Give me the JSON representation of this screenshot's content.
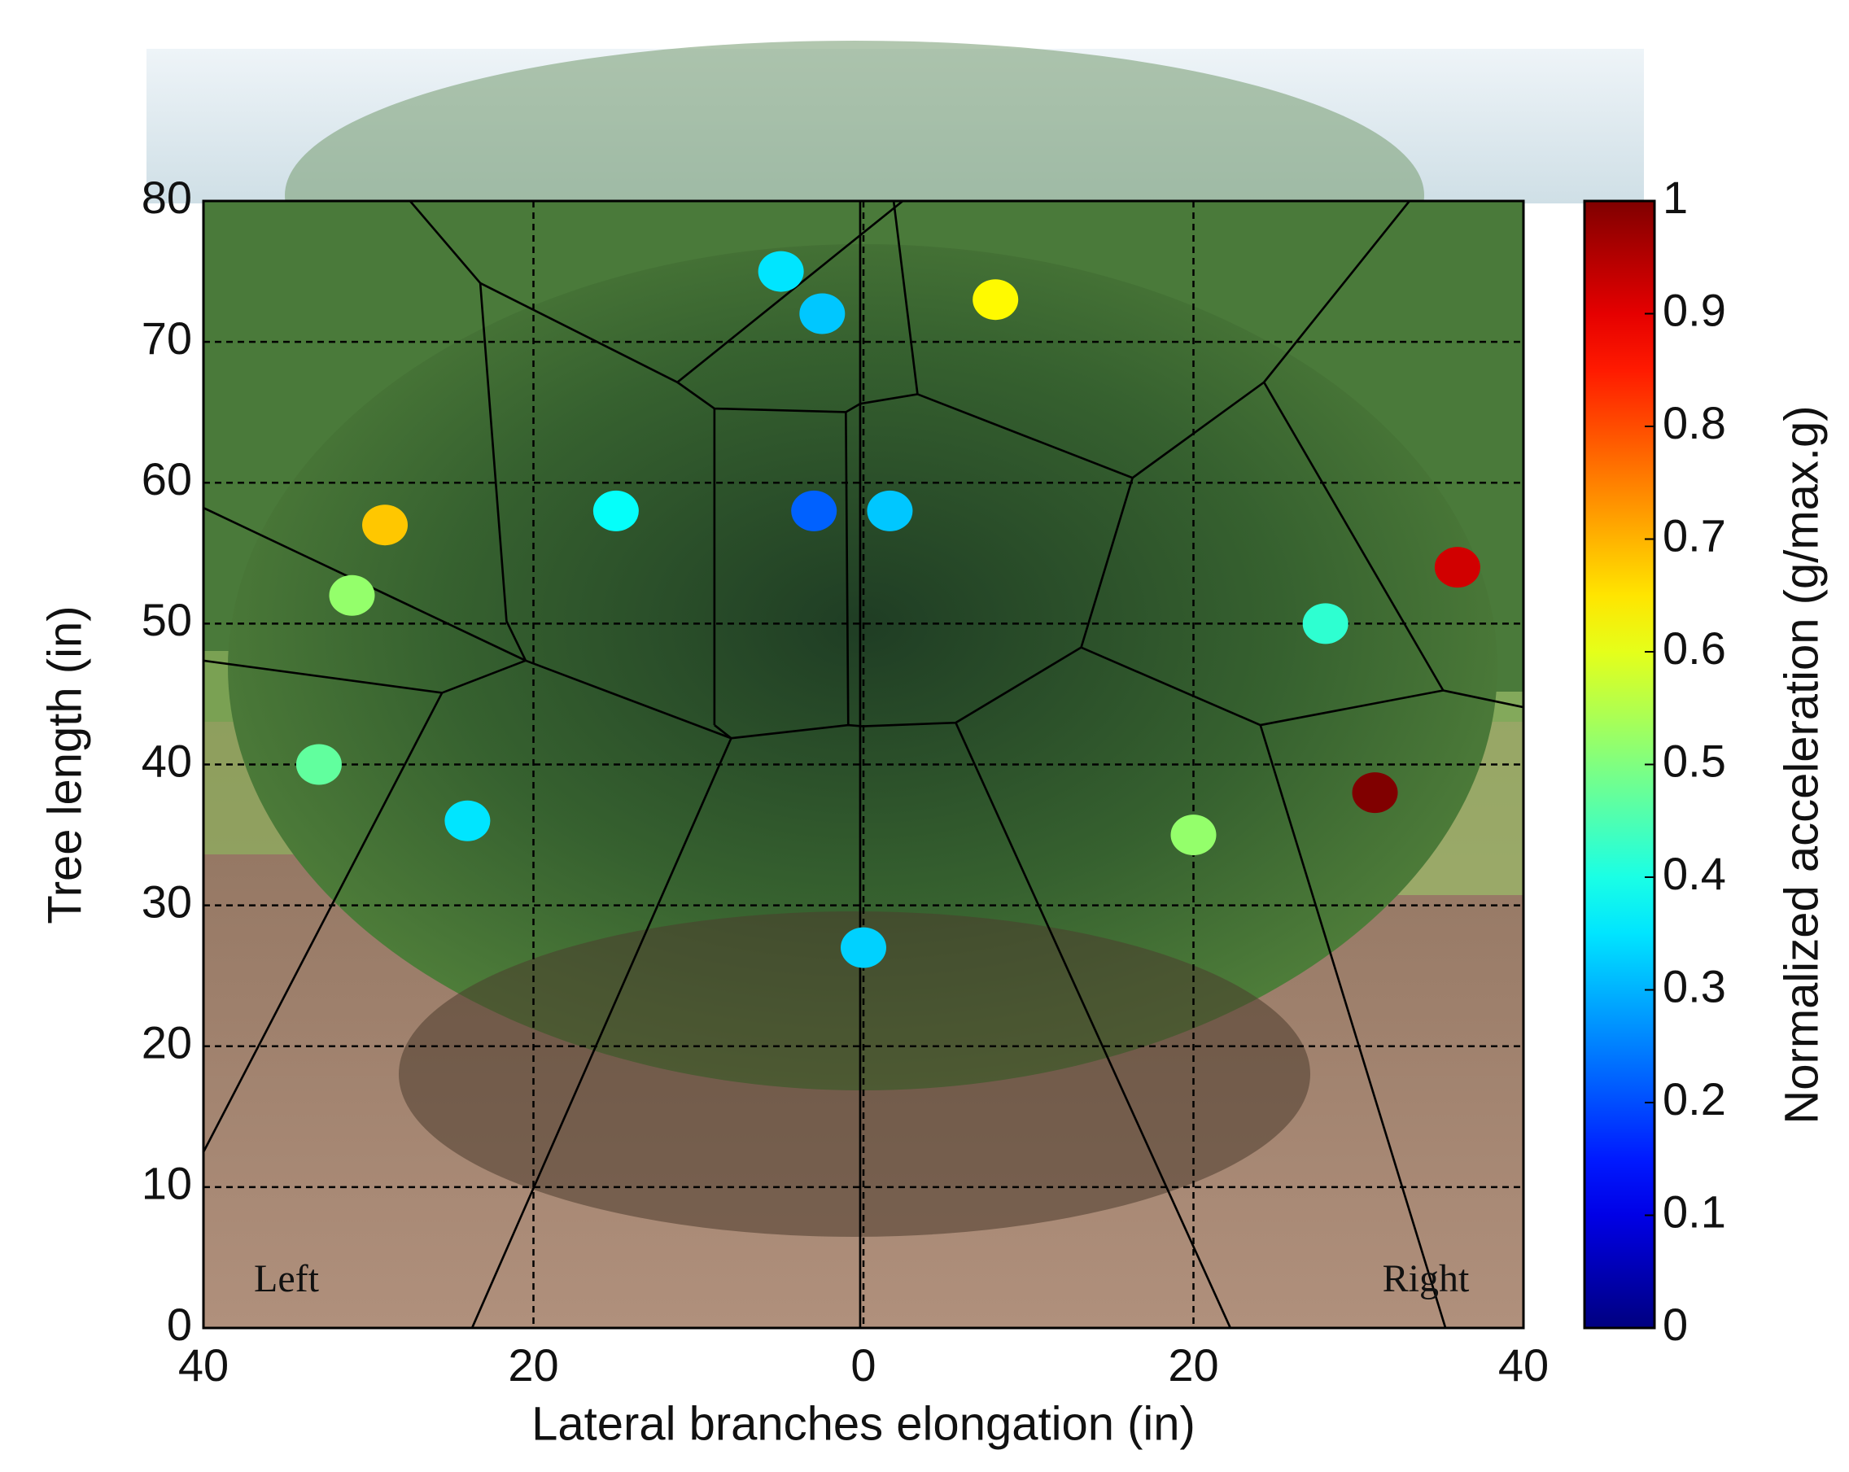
{
  "chart_data": {
    "type": "scatter",
    "xlabel": "Lateral branches elongation  (in)",
    "ylabel": "Tree length  (in)",
    "x": [
      -5,
      -2.5,
      8,
      -29,
      -31,
      -15,
      -3,
      1.6,
      36,
      28,
      -33,
      -24,
      31,
      20,
      0
    ],
    "y": [
      75,
      72,
      73,
      57,
      52,
      58,
      58,
      58,
      54,
      50,
      40,
      36,
      38,
      35,
      27
    ],
    "values": [
      0.35,
      0.32,
      0.63,
      0.68,
      0.52,
      0.38,
      0.22,
      0.32,
      0.92,
      0.42,
      0.47,
      0.35,
      1.0,
      0.52,
      0.33
    ],
    "colormap": "jet",
    "xlim": [
      -40,
      40
    ],
    "xticks": [
      {
        "value": -40,
        "label": "40"
      },
      {
        "value": -20,
        "label": "20"
      },
      0,
      20,
      40
    ],
    "ylim": [
      0,
      80
    ],
    "yticks": [
      0,
      10,
      20,
      30,
      40,
      50,
      60,
      70,
      80
    ],
    "grid": true,
    "colorbar": {
      "label": "Normalized acceleration (g/max.g)",
      "lim": [
        0,
        1
      ],
      "ticks": [
        0,
        0.1,
        0.2,
        0.3,
        0.4,
        0.5,
        0.6,
        0.7,
        0.8,
        0.9,
        1
      ]
    },
    "annotations": [
      "Left",
      "Right"
    ]
  }
}
